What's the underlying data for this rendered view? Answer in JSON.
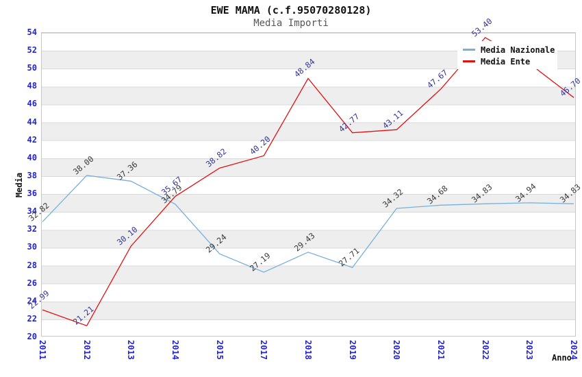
{
  "title": "EWE MAMA (c.f.95070280128)",
  "subtitle": "Media Importi",
  "axes": {
    "y_title": "Media",
    "x_title": "Anno",
    "y_ticks": [
      54,
      52,
      50,
      48,
      46,
      44,
      42,
      40,
      38,
      36,
      34,
      32,
      30,
      28,
      26,
      24,
      22,
      20
    ],
    "x_ticks": [
      "2011",
      "2012",
      "2013",
      "2014",
      "2015",
      "2017",
      "2018",
      "2019",
      "2020",
      "2021",
      "2022",
      "2023",
      "2024"
    ]
  },
  "legend": {
    "items": [
      {
        "label": "Media Nazionale",
        "color": "#79afdd"
      },
      {
        "label": "Media Ente",
        "color": "#e01212"
      }
    ]
  },
  "colors": {
    "tick_text": "#2424cc",
    "band_gray": "#eeeeee",
    "plot_border": "#c6c6c6",
    "national_line": "#79afdd",
    "ente_line": "#e01212",
    "national_label_text": "#383838",
    "ente_label_text": "#333399"
  },
  "chart_data": {
    "type": "line",
    "title": "EWE MAMA (c.f.95070280128)",
    "subtitle": "Media Importi",
    "xlabel": "Anno",
    "ylabel": "Media",
    "x": [
      "2011",
      "2012",
      "2013",
      "2014",
      "2015",
      "2017",
      "2018",
      "2019",
      "2020",
      "2021",
      "2022",
      "2023",
      "2024"
    ],
    "ylim": [
      20,
      54
    ],
    "y_step": 2,
    "grid": "horizontal-bands",
    "legend_position": "top-right-inside",
    "series": [
      {
        "name": "Media Nazionale",
        "color": "#79afdd",
        "label_color": "#383838",
        "values": [
          32.82,
          38.0,
          37.36,
          34.79,
          29.24,
          27.19,
          29.43,
          27.71,
          34.32,
          34.68,
          34.83,
          34.94,
          34.83
        ],
        "labels": [
          "32.82",
          "38.00",
          "37.36",
          "34.79",
          "29.24",
          "27.19",
          "29.43",
          "27.71",
          "34.32",
          "34.68",
          "34.83",
          "34.94",
          "34.83"
        ]
      },
      {
        "name": "Media Ente",
        "color": "#e01212",
        "label_color": "#333399",
        "values": [
          22.99,
          21.21,
          30.1,
          35.67,
          38.82,
          40.2,
          48.84,
          42.77,
          43.11,
          47.67,
          53.4,
          50.5,
          46.7
        ],
        "labels": [
          "22.99",
          "21.21",
          "30.10",
          "35.67",
          "38.82",
          "40.20",
          "48.84",
          "42.77",
          "43.11",
          "47.67",
          "53.40",
          null,
          "46.70"
        ],
        "note": "2023 value label hidden behind legend in source; value estimated from line position"
      }
    ]
  }
}
